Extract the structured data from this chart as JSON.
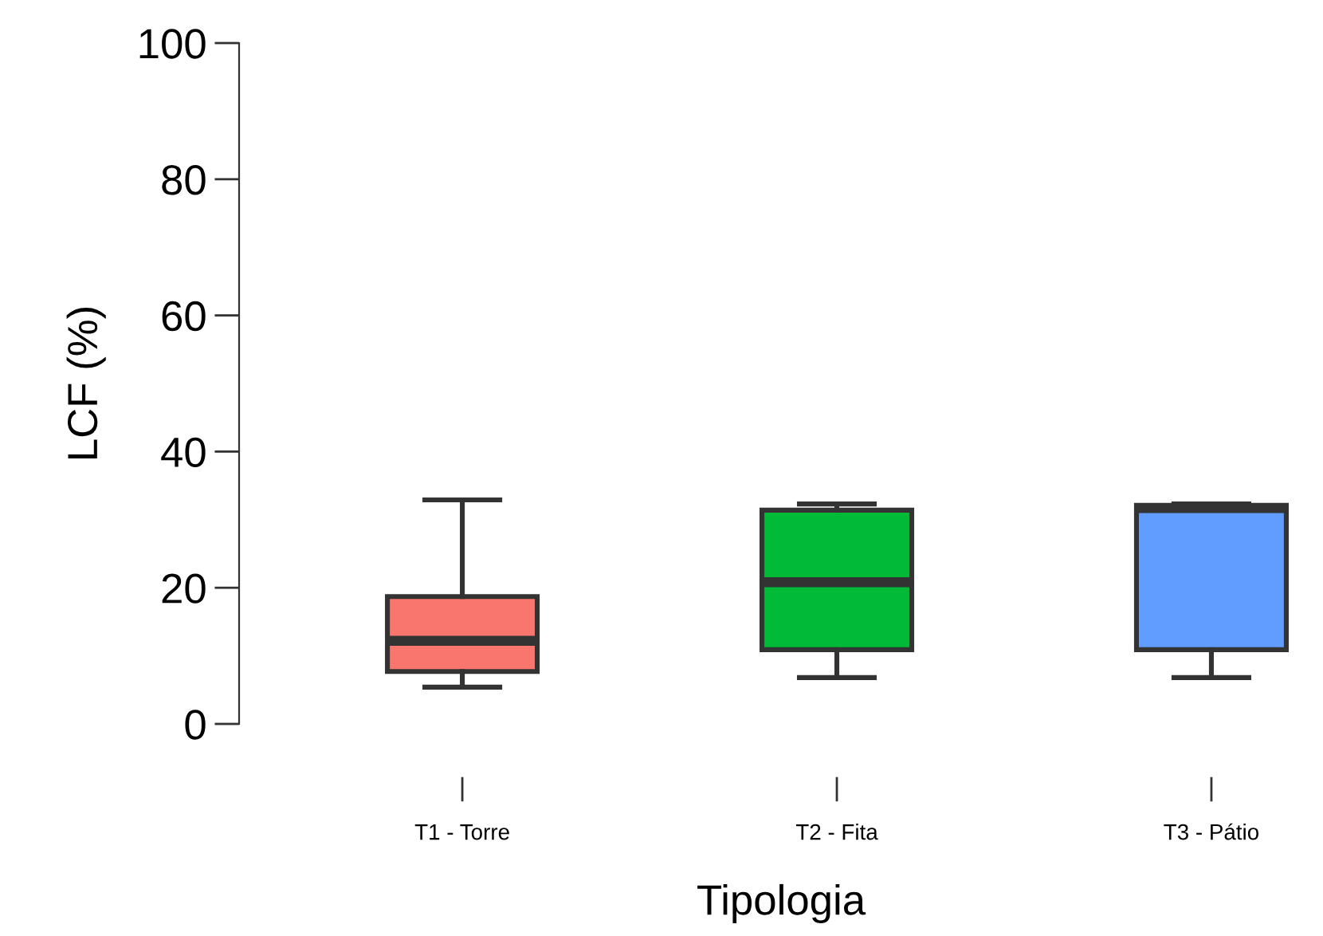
{
  "chart_data": {
    "type": "box",
    "xlabel": "Tipologia",
    "ylabel": "LCF (%)",
    "categories": [
      "T1 - Torre",
      "T2 - Fita",
      "T3 - Pátio"
    ],
    "colors": [
      "#f8766d",
      "#00ba38",
      "#619cff"
    ],
    "boxes": [
      {
        "low": 5.4,
        "q1": 7.7,
        "median": 12.2,
        "q3": 18.7,
        "high": 32.9
      },
      {
        "low": 6.8,
        "q1": 10.9,
        "median": 20.8,
        "q3": 31.4,
        "high": 32.3
      },
      {
        "low": 6.8,
        "q1": 10.9,
        "median": 31.7,
        "q3": 32.1,
        "high": 32.3
      }
    ],
    "ylim": [
      0,
      100
    ],
    "yticks": [
      0,
      20,
      40,
      60,
      80,
      100
    ],
    "grid": false,
    "legend": false
  }
}
